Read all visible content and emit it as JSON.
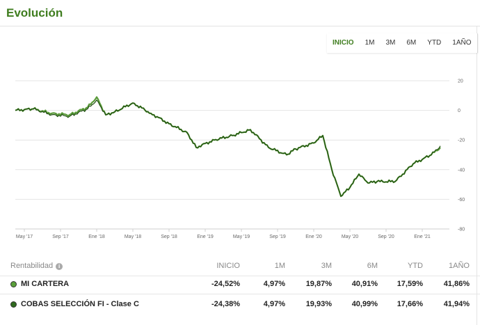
{
  "header": {
    "title": "Evolución"
  },
  "range_tabs": [
    "INICIO",
    "1M",
    "3M",
    "6M",
    "YTD",
    "1AÑO"
  ],
  "active_range": "INICIO",
  "colors": {
    "accent": "#3f7d1f",
    "series_primary": "#1f4d10",
    "series_secondary": "#5a9a3a",
    "dot_1": "#5aa03a",
    "dot_2": "#2f6a1e"
  },
  "chart_data": {
    "type": "line",
    "x_ticks": [
      "May '17",
      "Sep '17",
      "Ene '18",
      "May '18",
      "Sep '18",
      "Ene '19",
      "May '19",
      "Sep '19",
      "Ene '20",
      "May '20",
      "Sep '20",
      "Ene '21"
    ],
    "ylim": [
      -80,
      20
    ],
    "y_ticks": [
      "20",
      "0",
      "-20",
      "-40",
      "-60",
      "-80"
    ],
    "grid": true,
    "series": [
      {
        "x": [
          "2017-04",
          "2017-06",
          "2017-08",
          "2017-10",
          "2017-12",
          "2018-01",
          "2018-02",
          "2018-03",
          "2018-05",
          "2018-07",
          "2018-09",
          "2018-11",
          "2018-12",
          "2019-02",
          "2019-04",
          "2019-06",
          "2019-08",
          "2019-10",
          "2019-11",
          "2020-01",
          "2020-02",
          "2020-03",
          "2020-04",
          "2020-05",
          "2020-06",
          "2020-07",
          "2020-08",
          "2020-10",
          "2020-12",
          "2021-02",
          "2021-03"
        ],
        "values": [
          0,
          1,
          -2,
          -3,
          2,
          9,
          -3,
          -1,
          5,
          -2,
          -9,
          -15,
          -25,
          -20,
          -17,
          -13,
          -25,
          -30,
          -26,
          -22,
          -17,
          -40,
          -58,
          -52,
          -43,
          -49,
          -48,
          -48,
          -36,
          -30,
          -25
        ]
      },
      {
        "x": [
          "2017-04",
          "2017-06",
          "2017-08",
          "2017-10",
          "2017-12",
          "2018-01",
          "2018-02",
          "2018-03",
          "2018-05",
          "2018-07",
          "2018-09",
          "2018-11",
          "2018-12",
          "2019-02",
          "2019-04",
          "2019-06",
          "2019-08",
          "2019-10",
          "2019-11",
          "2020-01",
          "2020-02",
          "2020-03",
          "2020-04",
          "2020-05",
          "2020-06",
          "2020-07",
          "2020-08",
          "2020-10",
          "2020-12",
          "2021-02",
          "2021-03"
        ],
        "values": [
          0,
          1,
          -3,
          -4,
          1,
          7,
          -3,
          -1,
          5,
          -2,
          -9,
          -15,
          -25,
          -20,
          -17,
          -13,
          -25,
          -30,
          -26,
          -22,
          -17,
          -40,
          -58,
          -52,
          -43,
          -49,
          -48,
          -48,
          -36,
          -30,
          -24
        ]
      }
    ]
  },
  "table": {
    "header": {
      "label": "Rentabilidad",
      "cols": [
        "INICIO",
        "1M",
        "3M",
        "6M",
        "YTD",
        "1AÑO"
      ]
    },
    "rows": [
      {
        "name": "MI CARTERA",
        "values": [
          "-24,52%",
          "4,97%",
          "19,87%",
          "40,91%",
          "17,59%",
          "41,86%"
        ]
      },
      {
        "name": "COBAS SELECCIÓN FI - Clase C",
        "values": [
          "-24,38%",
          "4,97%",
          "19,93%",
          "40,99%",
          "17,66%",
          "41,94%"
        ]
      }
    ]
  }
}
